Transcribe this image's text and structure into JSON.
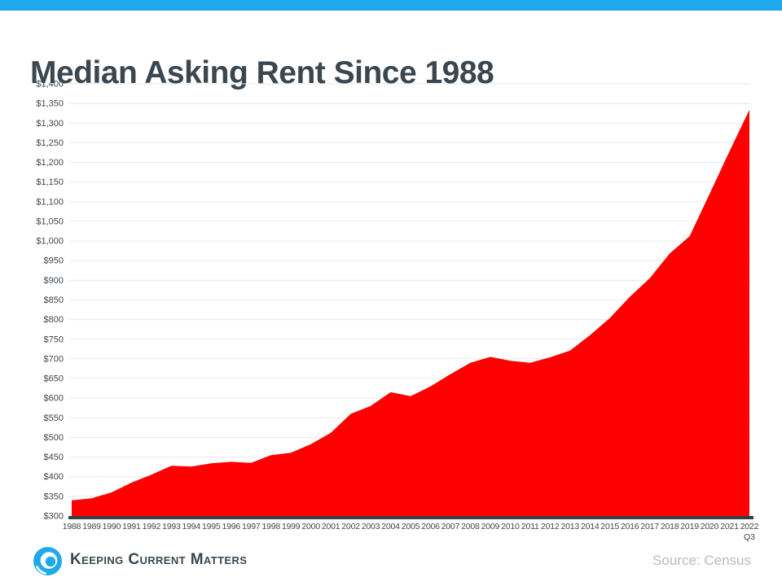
{
  "page": {
    "title": "Median Asking Rent Since 1988",
    "brand_name": "Keeping Current Matters",
    "source_note": "Source: Census"
  },
  "colors": {
    "brand_blue": "#1FA9EA",
    "area_red": "#FF0000",
    "title_text": "#3A4750",
    "axis_line": "#373D47",
    "gridline": "#E8EAEB",
    "tick_text": "#3F464C",
    "source_text": "#B3BCC3"
  },
  "chart_data": {
    "type": "area",
    "title": "Median Asking Rent Since 1988",
    "xlabel": "",
    "ylabel": "",
    "legend": "none",
    "grid": "horizontal",
    "ylim": [
      300,
      1400
    ],
    "ytick_step": 50,
    "y_tick_labels": [
      "$300",
      "$350",
      "$400",
      "$450",
      "$500",
      "$550",
      "$600",
      "$650",
      "$700",
      "$750",
      "$800",
      "$850",
      "$900",
      "$950",
      "$1,000",
      "$1,050",
      "$1,100",
      "$1,150",
      "$1,200",
      "$1,250",
      "$1,300",
      "$1,350",
      "$1,400"
    ],
    "categories": [
      "1988",
      "1989",
      "1990",
      "1991",
      "1992",
      "1993",
      "1994",
      "1995",
      "1996",
      "1997",
      "1998",
      "1999",
      "2000",
      "2001",
      "2002",
      "2003",
      "2004",
      "2005",
      "2006",
      "2007",
      "2008",
      "2009",
      "2010",
      "2011",
      "2012",
      "2013",
      "2014",
      "2015",
      "2016",
      "2017",
      "2018",
      "2019",
      "2020",
      "2021",
      "2022"
    ],
    "last_category_sublabel": "Q3",
    "series": [
      {
        "name": "Median Asking Rent",
        "values": [
          340,
          345,
          360,
          385,
          405,
          428,
          426,
          434,
          438,
          435,
          455,
          461,
          483,
          512,
          560,
          580,
          615,
          605,
          630,
          661,
          690,
          705,
          695,
          690,
          704,
          721,
          760,
          804,
          858,
          905,
          968,
          1012,
          1120,
          1228,
          1334
        ]
      }
    ],
    "fill_color": "#FF0000"
  }
}
